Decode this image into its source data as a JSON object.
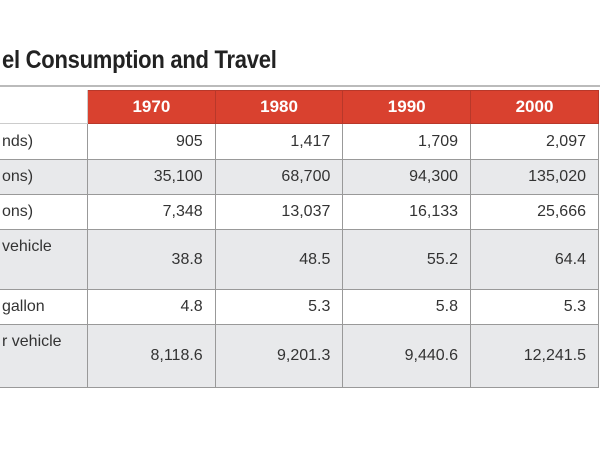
{
  "title": "el Consumption and Travel",
  "table": {
    "headers": [
      "1970",
      "1980",
      "1990",
      "2000"
    ],
    "rows": [
      {
        "label": "nds)",
        "values": [
          "905",
          "1,417",
          "1,709",
          "2,097"
        ]
      },
      {
        "label": "ons)",
        "values": [
          "35,100",
          "68,700",
          "94,300",
          "135,020"
        ]
      },
      {
        "label": "ons)",
        "values": [
          "7,348",
          "13,037",
          "16,133",
          "25,666"
        ]
      },
      {
        "label": "vehicle",
        "values": [
          "38.8",
          "48.5",
          "55.2",
          "64.4"
        ]
      },
      {
        "label": "gallon",
        "values": [
          "4.8",
          "5.3",
          "5.8",
          "5.3"
        ]
      },
      {
        "label": "r vehicle",
        "values": [
          "8,118.6",
          "9,201.3",
          "9,440.6",
          "12,241.5"
        ]
      }
    ]
  },
  "colors": {
    "header": "#d9412f",
    "alt_row": "#e8e9eb"
  }
}
